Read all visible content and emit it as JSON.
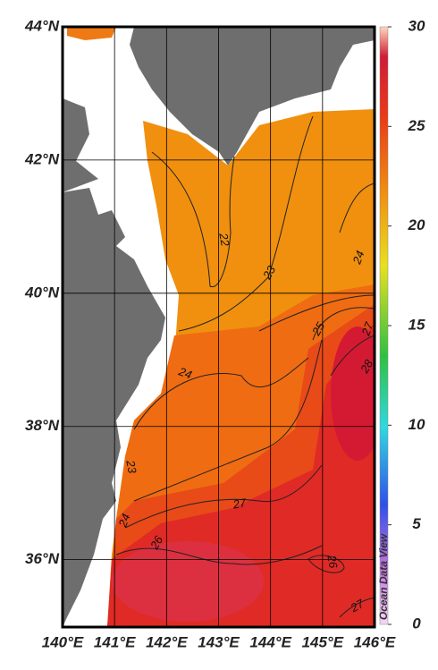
{
  "map": {
    "lon_ticks": [
      {
        "value": 140,
        "label": "140°E"
      },
      {
        "value": 141,
        "label": "141°E"
      },
      {
        "value": 142,
        "label": "142°E"
      },
      {
        "value": 143,
        "label": "143°E"
      },
      {
        "value": 144,
        "label": "144°E"
      },
      {
        "value": 145,
        "label": "145°E"
      },
      {
        "value": 146,
        "label": "146°E"
      }
    ],
    "lat_ticks": [
      {
        "value": 44,
        "label": "44°N"
      },
      {
        "value": 42,
        "label": "42°N"
      },
      {
        "value": 40,
        "label": "40°N"
      },
      {
        "value": 38,
        "label": "38°N"
      },
      {
        "value": 36,
        "label": "36°N"
      }
    ],
    "colorbar": {
      "ticks": [
        0,
        5,
        10,
        15,
        20,
        25,
        30
      ]
    },
    "contour_labels": [
      22,
      23,
      24,
      25,
      27,
      28,
      24,
      23,
      24,
      26,
      27,
      26,
      27
    ],
    "watermark": "Ocean Data View"
  }
}
